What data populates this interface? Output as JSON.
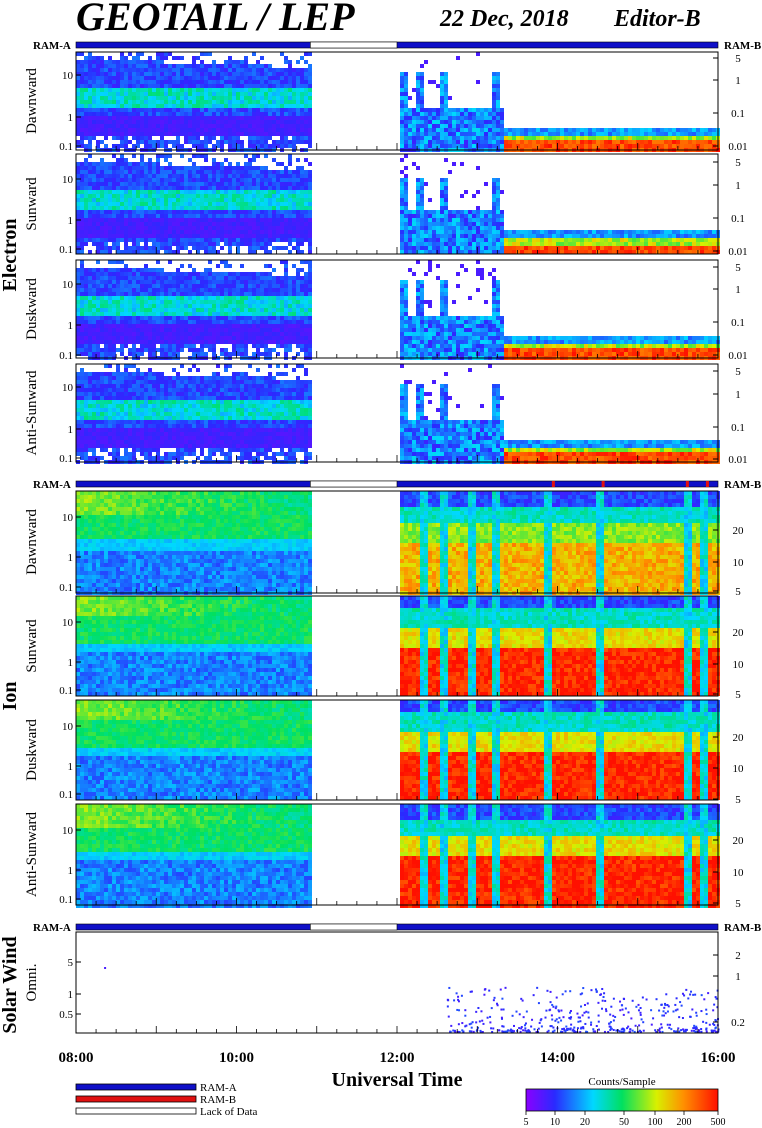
{
  "header": {
    "title": "GEOTAIL / LEP",
    "date": "22 Dec, 2018",
    "editor": "Editor-B"
  },
  "status_labels": {
    "left": "RAM-A",
    "right": "RAM-B"
  },
  "sections": {
    "electron": "Electron",
    "ion": "Ion",
    "solar_wind": "Solar Wind"
  },
  "panels": [
    {
      "label": "Dawnward",
      "group": "electron",
      "left_ticks": [
        "10",
        "1",
        "0.1"
      ],
      "right_ticks": [
        "5",
        "1",
        "0.1",
        "0.01"
      ]
    },
    {
      "label": "Sunward",
      "group": "electron",
      "left_ticks": [
        "10",
        "1",
        "0.1"
      ],
      "right_ticks": [
        "5",
        "1",
        "0.1",
        "0.01"
      ]
    },
    {
      "label": "Duskward",
      "group": "electron",
      "left_ticks": [
        "10",
        "1",
        "0.1"
      ],
      "right_ticks": [
        "5",
        "1",
        "0.1",
        "0.01"
      ]
    },
    {
      "label": "Anti-Sunward",
      "group": "electron",
      "left_ticks": [
        "10",
        "1",
        "0.1"
      ],
      "right_ticks": [
        "5",
        "1",
        "0.1",
        "0.01"
      ]
    },
    {
      "label": "Dawnward",
      "group": "ion",
      "left_ticks": [
        "10",
        "1",
        "0.1"
      ],
      "right_ticks": [
        "20",
        "10",
        "5"
      ]
    },
    {
      "label": "Sunward",
      "group": "ion",
      "left_ticks": [
        "10",
        "1",
        "0.1"
      ],
      "right_ticks": [
        "20",
        "10",
        "5"
      ]
    },
    {
      "label": "Duskward",
      "group": "ion",
      "left_ticks": [
        "10",
        "1",
        "0.1"
      ],
      "right_ticks": [
        "20",
        "10",
        "5"
      ]
    },
    {
      "label": "Anti-Sunward",
      "group": "ion",
      "left_ticks": [
        "10",
        "1",
        "0.1"
      ],
      "right_ticks": [
        "20",
        "10",
        "5"
      ]
    },
    {
      "label": "Omni.",
      "group": "solar_wind",
      "left_ticks": [
        "5",
        "1",
        "0.5"
      ],
      "right_ticks": [
        "2",
        "1",
        "0.2"
      ]
    }
  ],
  "x_axis": {
    "label": "Universal Time",
    "ticks": [
      "08:00",
      "10:00",
      "12:00",
      "14:00",
      "16:00"
    ]
  },
  "legend": {
    "items": [
      {
        "label": "RAM-A",
        "color": "#1010c8"
      },
      {
        "label": "RAM-B",
        "color": "#e01010"
      },
      {
        "label": "Lack of Data",
        "color": "#ffffff"
      }
    ],
    "colorbar_title": "Counts/Sample",
    "colorbar_ticks": [
      "5",
      "10",
      "20",
      "50",
      "100",
      "200",
      "500"
    ]
  },
  "colors": {
    "ram_a": "#1010c8",
    "ram_b": "#e01010"
  },
  "chart_data": {
    "type": "heatmap",
    "title": "GEOTAIL / LEP",
    "xlabel": "Universal Time",
    "x_range": [
      "08:00",
      "16:00"
    ],
    "data_gap": [
      "10:55",
      "12:00"
    ],
    "color_scale": {
      "label": "Counts/Sample",
      "range": [
        5,
        500
      ],
      "log": true
    },
    "panels": [
      "Electron Dawnward",
      "Electron Sunward",
      "Electron Duskward",
      "Electron Anti-Sunward",
      "Ion Dawnward",
      "Ion Sunward",
      "Ion Duskward",
      "Ion Anti-Sunward",
      "Solar Wind Omni."
    ],
    "y_scale": "log"
  }
}
